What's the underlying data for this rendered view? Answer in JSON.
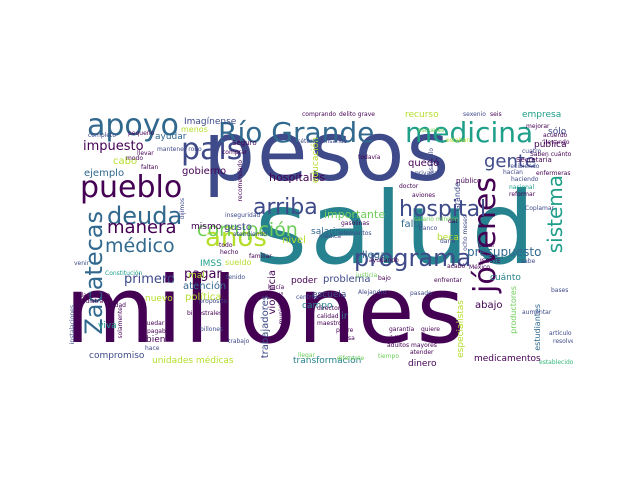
{
  "palette": {
    "dark": "#440154",
    "darkblue": "#3e4a89",
    "blue": "#31688e",
    "teal": "#26828e",
    "green": "#1f9e89",
    "lime": "#35b779",
    "lightgreen": "#6ece58",
    "yellow": "#b5de2b",
    "gold": "#fde725"
  },
  "words": [
    {
      "id": "millones",
      "text": "millones"
    },
    {
      "id": "salud",
      "text": "salud"
    },
    {
      "id": "pesos",
      "text": "pesos"
    },
    {
      "id": "rio-grande",
      "text": "Río Grande"
    },
    {
      "id": "apoyo",
      "text": "apoyo"
    },
    {
      "id": "medicina",
      "text": "medicina"
    },
    {
      "id": "pais",
      "text": "país"
    },
    {
      "id": "pueblo",
      "text": "pueblo"
    },
    {
      "id": "deuda",
      "text": "deuda"
    },
    {
      "id": "zacatecas",
      "text": "Zacatecas"
    },
    {
      "id": "programa",
      "text": "programa"
    },
    {
      "id": "jovenes",
      "text": "jóvenes"
    },
    {
      "id": "anos",
      "text": "años"
    },
    {
      "id": "corrupcion",
      "text": "corrupción"
    },
    {
      "id": "hospital",
      "text": "hospital"
    },
    {
      "id": "arriba",
      "text": "arriba"
    },
    {
      "id": "medico",
      "text": "médico"
    },
    {
      "id": "manera",
      "text": "manera"
    },
    {
      "id": "sistema",
      "text": "sistema"
    },
    {
      "id": "gente",
      "text": "gente"
    },
    {
      "id": "impuesto",
      "text": "impuesto"
    },
    {
      "id": "primero",
      "text": "primero"
    },
    {
      "id": "pagar",
      "text": "pagar"
    },
    {
      "id": "presupuesto",
      "text": "presupuesto"
    },
    {
      "id": "hospitales",
      "text": "hospitales"
    },
    {
      "id": "imaginense",
      "text": "Imagínense"
    },
    {
      "id": "ayudar",
      "text": "ayudar"
    },
    {
      "id": "gobierno",
      "text": "gobierno"
    },
    {
      "id": "ejemplo",
      "text": "ejemplo"
    },
    {
      "id": "cabo",
      "text": "cabo"
    },
    {
      "id": "salario",
      "text": "salario"
    },
    {
      "id": "importante",
      "text": "importante"
    },
    {
      "id": "educacion",
      "text": "educación"
    },
    {
      "id": "quedo",
      "text": "quedó"
    },
    {
      "id": "falta",
      "text": "falta"
    },
    {
      "id": "llega",
      "text": "llega"
    },
    {
      "id": "nivel",
      "text": "nivel"
    },
    {
      "id": "mismo",
      "text": "mismo"
    },
    {
      "id": "gusto",
      "text": "gusto"
    },
    {
      "id": "recurso",
      "text": "recurso"
    },
    {
      "id": "empresa",
      "text": "empresa"
    },
    {
      "id": "solo",
      "text": "sólo"
    },
    {
      "id": "publica",
      "text": "pública"
    },
    {
      "id": "beca",
      "text": "beca"
    },
    {
      "id": "cuanto",
      "text": "cuánto"
    },
    {
      "id": "atencion",
      "text": "atención"
    },
    {
      "id": "nuevo",
      "text": "nuevo"
    },
    {
      "id": "politica",
      "text": "política"
    },
    {
      "id": "mal",
      "text": "mal"
    },
    {
      "id": "imss",
      "text": "IMSS"
    },
    {
      "id": "sueldo",
      "text": "sueldo"
    },
    {
      "id": "problema",
      "text": "problema"
    },
    {
      "id": "escuela",
      "text": "escuela"
    },
    {
      "id": "campo",
      "text": "campo"
    },
    {
      "id": "poder",
      "text": "poder"
    },
    {
      "id": "violencia",
      "text": "violencia"
    },
    {
      "id": "trabajadores",
      "text": "trabajadores"
    },
    {
      "id": "ir",
      "text": "ir"
    },
    {
      "id": "abajo",
      "text": "abajo"
    },
    {
      "id": "estudiantes",
      "text": "estudiantes"
    },
    {
      "id": "viva",
      "text": "viva"
    },
    {
      "id": "bien",
      "text": "bien"
    },
    {
      "id": "compromiso",
      "text": "compromiso"
    },
    {
      "id": "unidades-medicas",
      "text": "unidades médicas"
    },
    {
      "id": "transformacion",
      "text": "transformación"
    },
    {
      "id": "dinero",
      "text": "dinero"
    },
    {
      "id": "medicamentos",
      "text": "medicamentos"
    },
    {
      "id": "especialistas",
      "text": "especialistas"
    },
    {
      "id": "productores",
      "text": "productores"
    },
    {
      "id": "grande-v",
      "text": "Grande"
    },
    {
      "id": "menos",
      "text": "menos"
    },
    {
      "id": "seguro",
      "text": "Seguro"
    },
    {
      "id": "escuelas",
      "text": "escuelas"
    },
    {
      "id": "estaban",
      "text": "estaban"
    },
    {
      "id": "todavia",
      "text": "todavía"
    },
    {
      "id": "privada",
      "text": "privada"
    },
    {
      "id": "secretaria",
      "text": "Secretaría"
    },
    {
      "id": "hacian",
      "text": "hacían"
    },
    {
      "id": "publico",
      "text": "público"
    },
    {
      "id": "nacional",
      "text": "nacional"
    },
    {
      "id": "reformar",
      "text": "reformar"
    },
    {
      "id": "coplamar",
      "text": "Coplamar"
    },
    {
      "id": "haciendo",
      "text": "haciendo"
    },
    {
      "id": "desarrollo",
      "text": "desarrollo"
    },
    {
      "id": "salario-minimo",
      "text": "salario mínimo"
    },
    {
      "id": "gasolinas",
      "text": "gasolinas"
    },
    {
      "id": "elementos",
      "text": "elementos"
    },
    {
      "id": "medica",
      "text": "médica"
    },
    {
      "id": "ayudando",
      "text": "ayudando"
    },
    {
      "id": "alejandro",
      "text": "Alejandro"
    },
    {
      "id": "pasado",
      "text": "pasado"
    },
    {
      "id": "garantia",
      "text": "garantía"
    },
    {
      "id": "frijol",
      "text": "frijol"
    },
    {
      "id": "quiere",
      "text": "quiere"
    },
    {
      "id": "atender",
      "text": "atender"
    },
    {
      "id": "tiempo",
      "text": "tiempo"
    },
    {
      "id": "aumentar",
      "text": "aumentar"
    },
    {
      "id": "articulo",
      "text": "artículo"
    },
    {
      "id": "resolver",
      "text": "resolver"
    },
    {
      "id": "establecido",
      "text": "establecido"
    },
    {
      "id": "bases",
      "text": "bases"
    },
    {
      "id": "constitucion",
      "text": "Constitución"
    },
    {
      "id": "trabajo",
      "text": "trabajo"
    },
    {
      "id": "billones",
      "text": "billones"
    },
    {
      "id": "quedar",
      "text": "quedar"
    },
    {
      "id": "vida-publica",
      "text": "vida pública"
    },
    {
      "id": "centros",
      "text": "centros"
    },
    {
      "id": "director",
      "text": "director"
    },
    {
      "id": "calidad",
      "text": "calidad"
    },
    {
      "id": "pobre",
      "text": "pobre"
    },
    {
      "id": "llegar",
      "text": "llegar"
    },
    {
      "id": "diferente",
      "text": "diferente"
    },
    {
      "id": "instalaciones",
      "text": "instalaciones"
    },
    {
      "id": "delito-grave",
      "text": "delito grave"
    },
    {
      "id": "comprando",
      "text": "comprando"
    },
    {
      "id": "sexenio",
      "text": "sexenio"
    },
    {
      "id": "seis",
      "text": "seis"
    },
    {
      "id": "mejorar",
      "text": "mejorar"
    },
    {
      "id": "acuerdo",
      "text": "acuerdo"
    },
    {
      "id": "llevando",
      "text": "llevando"
    },
    {
      "id": "cuatro",
      "text": "cuatro"
    },
    {
      "id": "saben-cuanto",
      "text": "Saben cuánto"
    },
    {
      "id": "enfermeras",
      "text": "enfermeras"
    },
    {
      "id": "recibiendo",
      "text": "recibiendo"
    },
    {
      "id": "inseguridad",
      "text": "inseguridad"
    },
    {
      "id": "dijimos",
      "text": "dijimos"
    },
    {
      "id": "atendiendo",
      "text": "atendiendo"
    },
    {
      "id": "recomendado",
      "text": "recomendado"
    },
    {
      "id": "pequeno",
      "text": "pequeño"
    },
    {
      "id": "completo",
      "text": "completo"
    },
    {
      "id": "llevar",
      "text": "llevar"
    },
    {
      "id": "modo",
      "text": "modo"
    },
    {
      "id": "etcetera",
      "text": "etcétera"
    },
    {
      "id": "pensando",
      "text": "pensando"
    },
    {
      "id": "hacia",
      "text": "hacía"
    },
    {
      "id": "doctor",
      "text": "doctor"
    },
    {
      "id": "aviones",
      "text": "aviones"
    },
    {
      "id": "banco",
      "text": "banco"
    },
    {
      "id": "dar",
      "text": "dar"
    },
    {
      "id": "darle",
      "text": "darle"
    },
    {
      "id": "acabo",
      "text": "acabó"
    },
    {
      "id": "ocho-meses",
      "text": "ocho meses"
    },
    {
      "id": "pasar",
      "text": "pasar"
    },
    {
      "id": "issste",
      "text": "ISSSTE"
    },
    {
      "id": "mexico",
      "text": "México"
    },
    {
      "id": "venir",
      "text": "venir"
    },
    {
      "id": "familiar",
      "text": "familiar"
    },
    {
      "id": "tenido",
      "text": "tenido"
    },
    {
      "id": "proposito",
      "text": "propósito"
    },
    {
      "id": "hecho",
      "text": "hecho"
    },
    {
      "id": "todo",
      "text": "todo"
    },
    {
      "id": "cosa",
      "text": "cosa"
    },
    {
      "id": "bimestrales",
      "text": "bimestrales"
    },
    {
      "id": "municipios",
      "text": "municipios"
    },
    {
      "id": "justicia",
      "text": "justicia"
    },
    {
      "id": "bajo",
      "text": "bajo"
    },
    {
      "id": "adultos-mayores",
      "text": "adultos mayores"
    },
    {
      "id": "pagaban",
      "text": "pagaban"
    },
    {
      "id": "ciudad",
      "text": "Ciudad"
    },
    {
      "id": "pediatra",
      "text": "pediatra"
    },
    {
      "id": "maestro",
      "text": "maestro"
    },
    {
      "id": "hace",
      "text": "hace"
    },
    {
      "id": "faltan",
      "text": "faltan"
    },
    {
      "id": "solamente",
      "text": "solamente"
    },
    {
      "id": "sabe",
      "text": "sabe"
    },
    {
      "id": "enfrentar",
      "text": "enfrentar"
    },
    {
      "id": "mantener-robo",
      "text": "mantener robo"
    },
    {
      "id": "comprar",
      "text": "comprar"
    }
  ]
}
